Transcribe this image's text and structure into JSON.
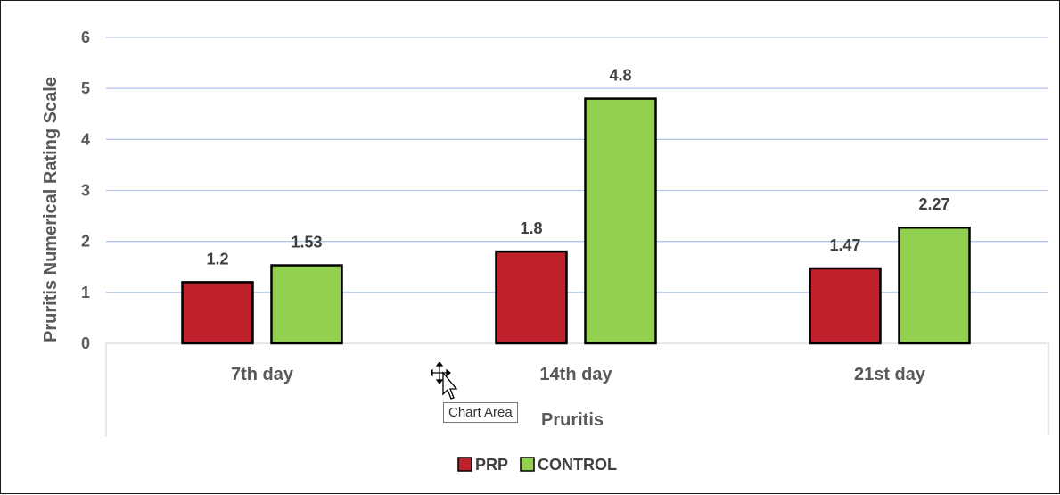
{
  "chart_data": {
    "type": "bar",
    "categories": [
      "7th day",
      "14th day",
      "21st day"
    ],
    "series": [
      {
        "name": "PRP",
        "values": [
          1.2,
          1.8,
          1.47
        ],
        "labels": [
          "1.2",
          "1.8",
          "1.47"
        ],
        "color": "#C0202A"
      },
      {
        "name": "CONTROL",
        "values": [
          1.53,
          4.8,
          2.27
        ],
        "labels": [
          "1.53",
          "4.8",
          "2.27"
        ],
        "color": "#92D050"
      }
    ],
    "title": "",
    "xlabel": "Pruritis",
    "ylabel": "Pruritis Numerical Rating Scale",
    "ylim": [
      0,
      6
    ],
    "yticks": [
      "0",
      "1",
      "2",
      "3",
      "4",
      "5",
      "6"
    ],
    "grid": true,
    "legend_position": "bottom",
    "gridline_color": "#B4C7E7",
    "bar_outline_color": "#000000"
  },
  "tooltip": {
    "text": "Chart Area",
    "icon": "move-cursor-icon"
  }
}
